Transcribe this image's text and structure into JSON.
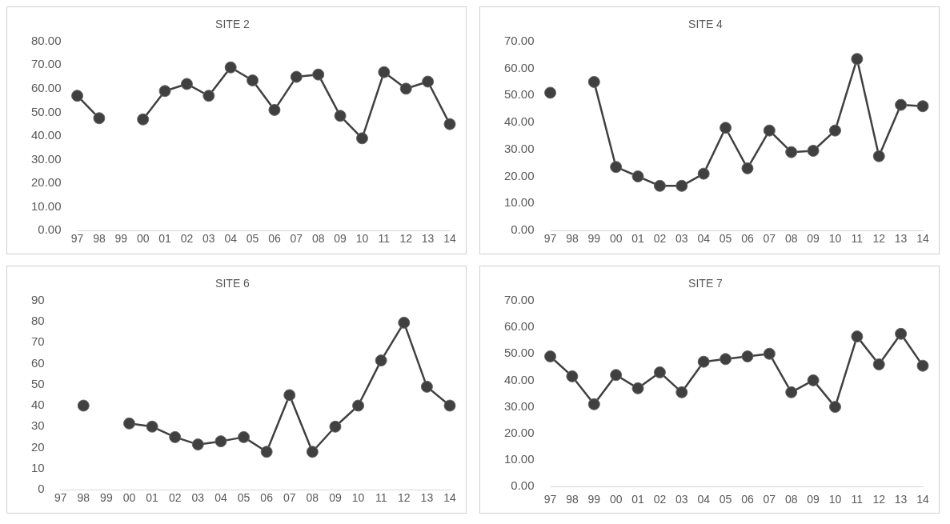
{
  "chart_data": [
    {
      "type": "line",
      "title": "SITE 2",
      "categories": [
        "97",
        "98",
        "99",
        "00",
        "01",
        "02",
        "03",
        "04",
        "05",
        "06",
        "07",
        "08",
        "09",
        "10",
        "11",
        "12",
        "13",
        "14"
      ],
      "series": [
        {
          "color": "#404040",
          "values": [
            57,
            47.5,
            null,
            47,
            59,
            62,
            57,
            69,
            63.5,
            51,
            65,
            66,
            48.5,
            39,
            67,
            60,
            63,
            45
          ]
        }
      ],
      "ylim": [
        0,
        80
      ],
      "yticks": [
        {
          "value": 0,
          "label": "0.00"
        },
        {
          "value": 10,
          "label": "10.00"
        },
        {
          "value": 20,
          "label": "20.00"
        },
        {
          "value": 30,
          "label": "30.00"
        },
        {
          "value": 40,
          "label": "40.00"
        },
        {
          "value": 50,
          "label": "50.00"
        },
        {
          "value": 60,
          "label": "60.00"
        },
        {
          "value": 70,
          "label": "70.00"
        },
        {
          "value": 80,
          "label": "80.00"
        }
      ],
      "grid": false,
      "legend": false,
      "marker": "circle",
      "line_style": "solid"
    },
    {
      "type": "line",
      "title": "SITE 4",
      "categories": [
        "97",
        "98",
        "99",
        "00",
        "01",
        "02",
        "03",
        "04",
        "05",
        "06",
        "07",
        "08",
        "09",
        "10",
        "11",
        "12",
        "13",
        "14"
      ],
      "series": [
        {
          "color": "#404040",
          "values": [
            51,
            null,
            55,
            23.5,
            20,
            16.5,
            16.5,
            21,
            38,
            23,
            37,
            29,
            29.5,
            37,
            63.5,
            27.5,
            46.5,
            46
          ]
        }
      ],
      "ylim": [
        0,
        70
      ],
      "yticks": [
        {
          "value": 0,
          "label": "0.00"
        },
        {
          "value": 10,
          "label": "10.00"
        },
        {
          "value": 20,
          "label": "20.00"
        },
        {
          "value": 30,
          "label": "30.00"
        },
        {
          "value": 40,
          "label": "40.00"
        },
        {
          "value": 50,
          "label": "50.00"
        },
        {
          "value": 60,
          "label": "60.00"
        },
        {
          "value": 70,
          "label": "70.00"
        }
      ],
      "grid": false,
      "legend": false,
      "marker": "circle",
      "line_style": "solid"
    },
    {
      "type": "line",
      "title": "SITE 6",
      "categories": [
        "97",
        "98",
        "99",
        "00",
        "01",
        "02",
        "03",
        "04",
        "05",
        "06",
        "07",
        "08",
        "09",
        "10",
        "11",
        "12",
        "13",
        "14"
      ],
      "series": [
        {
          "color": "#404040",
          "values": [
            null,
            40,
            null,
            31.5,
            30,
            25,
            21.5,
            23,
            25,
            18,
            45,
            18,
            30,
            40,
            61.5,
            79.5,
            49,
            40
          ]
        }
      ],
      "ylim": [
        0,
        90
      ],
      "yticks": [
        0,
        10,
        20,
        30,
        40,
        50,
        60,
        70,
        80,
        90
      ],
      "grid": false,
      "legend": false,
      "marker": "circle",
      "line_style": "solid"
    },
    {
      "type": "line",
      "title": "SITE 7",
      "categories": [
        "97",
        "98",
        "99",
        "00",
        "01",
        "02",
        "03",
        "04",
        "05",
        "06",
        "07",
        "08",
        "09",
        "10",
        "11",
        "12",
        "13",
        "14"
      ],
      "series": [
        {
          "color": "#404040",
          "values": [
            49,
            41.5,
            31,
            42,
            37,
            43,
            35.5,
            47,
            48,
            49,
            50,
            35.5,
            40,
            30,
            56.5,
            46,
            57.5,
            45.5
          ]
        }
      ],
      "ylim": [
        0,
        70
      ],
      "yticks": [
        {
          "value": 0,
          "label": "0.00"
        },
        {
          "value": 10,
          "label": "10.00"
        },
        {
          "value": 20,
          "label": "20.00"
        },
        {
          "value": 30,
          "label": "30.00"
        },
        {
          "value": 40,
          "label": "40.00"
        },
        {
          "value": 50,
          "label": "50.00"
        },
        {
          "value": 60,
          "label": "60.00"
        },
        {
          "value": 70,
          "label": "70.00"
        }
      ],
      "grid": false,
      "legend": false,
      "marker": "circle",
      "line_style": "solid"
    }
  ]
}
